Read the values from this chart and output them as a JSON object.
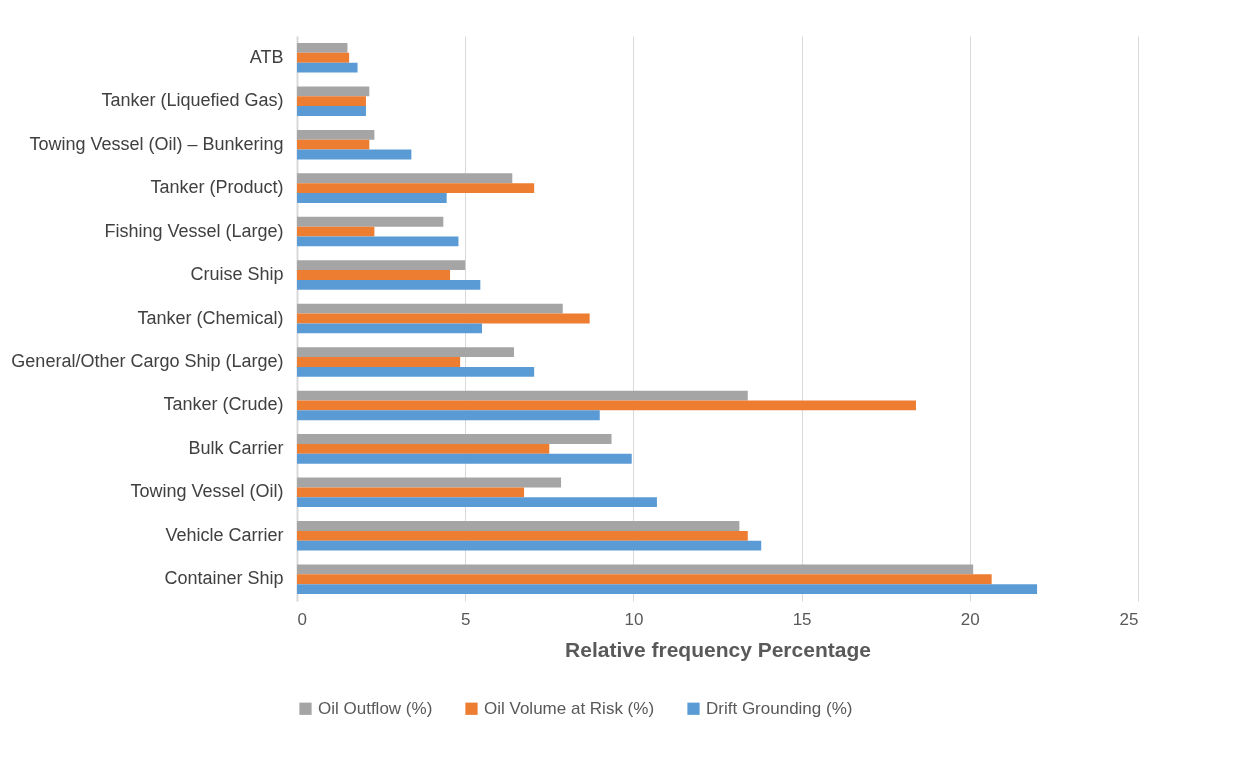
{
  "chart_data": {
    "type": "bar",
    "orientation": "horizontal",
    "xlabel": "Relative frequency Percentage",
    "categories": [
      "ATB",
      "Tanker (Liquefied Gas)",
      "Towing Vessel (Oil) – Bunkering",
      "Tanker (Product)",
      "Fishing Vessel (Large)",
      "Cruise Ship",
      "Tanker (Chemical)",
      "General/Other Cargo Ship (Large)",
      "Tanker (Crude)",
      "Bulk Carrier",
      "Towing Vessel (Oil)",
      "Vehicle Carrier",
      "Container Ship"
    ],
    "series": [
      {
        "name": "Oil Outflow (%)",
        "color": "#a5a5a5",
        "values": [
          1.5,
          2.15,
          2.3,
          6.4,
          4.35,
          5.0,
          7.9,
          6.45,
          13.4,
          9.35,
          7.85,
          13.15,
          20.1
        ]
      },
      {
        "name": "Oil Volume at Risk (%)",
        "color": "#ed7d31",
        "values": [
          1.55,
          2.05,
          2.15,
          7.05,
          2.3,
          4.55,
          8.7,
          4.85,
          18.4,
          7.5,
          6.75,
          13.4,
          20.65
        ]
      },
      {
        "name": "Drift Grounding (%)",
        "color": "#5b9bd5",
        "values": [
          1.8,
          2.05,
          3.4,
          4.45,
          4.8,
          5.45,
          5.5,
          7.05,
          9.0,
          9.95,
          10.7,
          13.8,
          22.0
        ]
      }
    ],
    "xlim": [
      0,
      25
    ],
    "xticks": [
      0,
      5,
      10,
      15,
      20,
      25
    ],
    "grid": "x",
    "legend": "bottom"
  }
}
